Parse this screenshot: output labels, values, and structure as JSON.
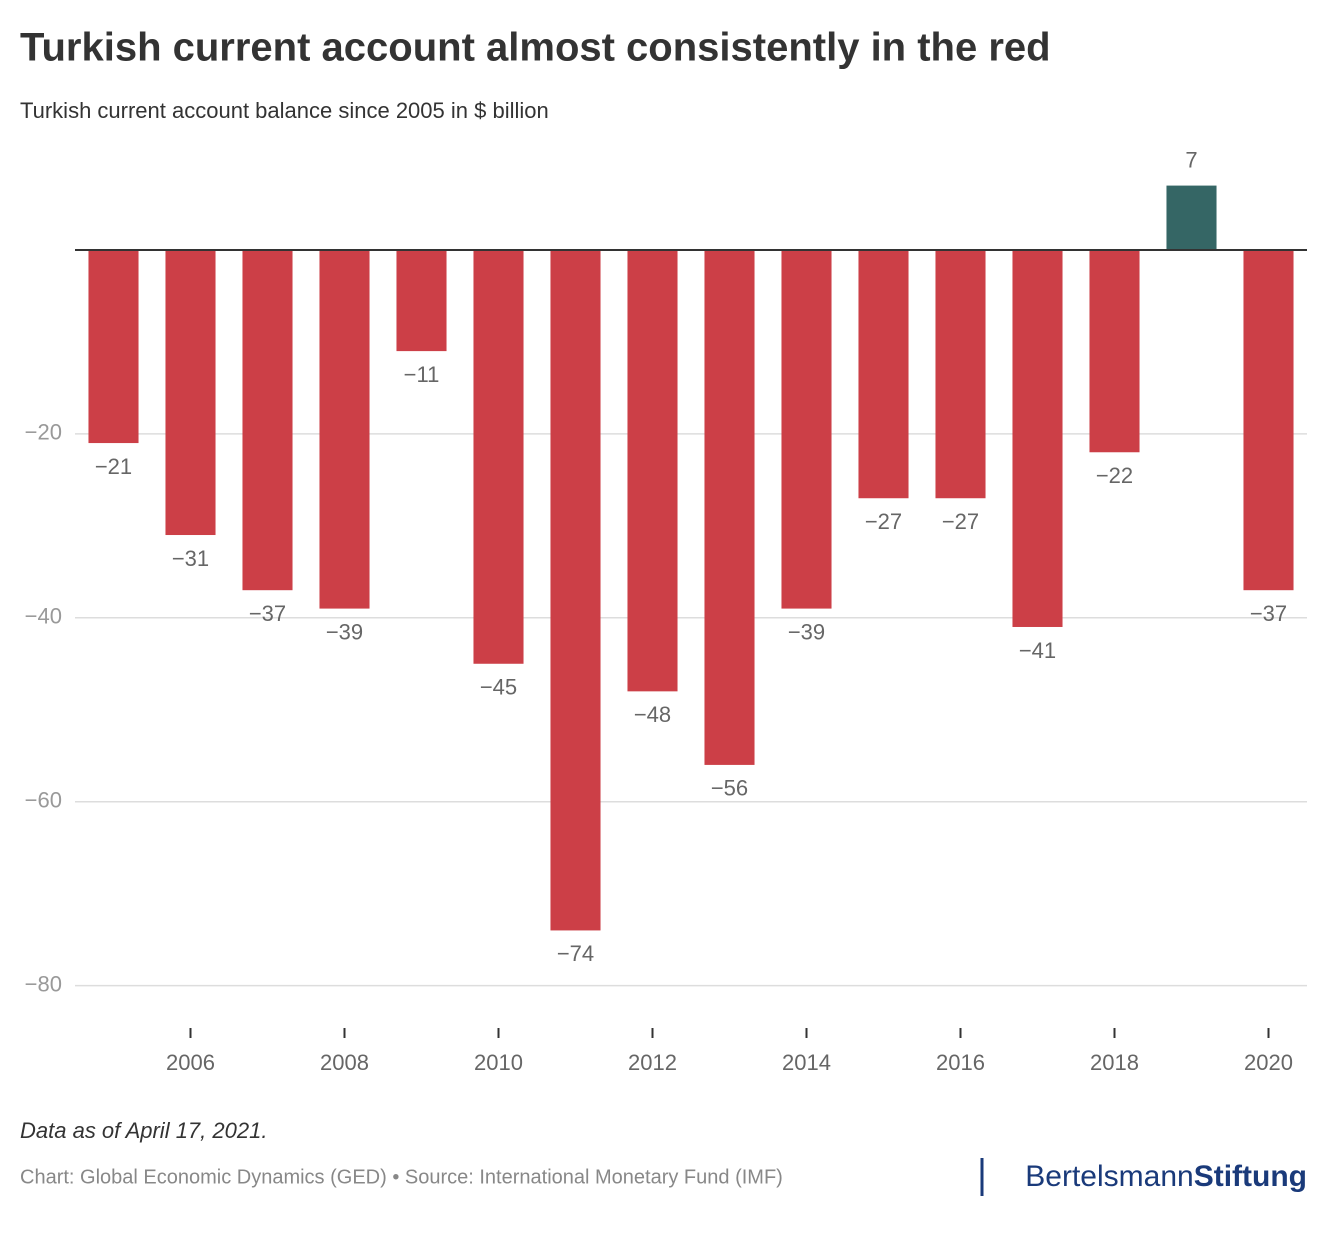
{
  "chart_data": {
    "type": "bar",
    "title": "Turkish current account almost consistently in the red",
    "subtitle": "Turkish current account balance since 2005 in $ billion",
    "x": [
      2005,
      2006,
      2007,
      2008,
      2009,
      2010,
      2011,
      2012,
      2013,
      2014,
      2015,
      2016,
      2017,
      2018,
      2019,
      2020
    ],
    "values": [
      -21,
      -31,
      -37,
      -39,
      -11,
      -45,
      -74,
      -48,
      -56,
      -39,
      -27,
      -27,
      -41,
      -22,
      7,
      -37
    ],
    "value_labels": [
      "−21",
      "−31",
      "−37",
      "−39",
      "−11",
      "−45",
      "−74",
      "−48",
      "−56",
      "−39",
      "−27",
      "−27",
      "−41",
      "−22",
      "7",
      "−37"
    ],
    "colors": [
      "#cc3f47",
      "#cc3f47",
      "#cc3f47",
      "#cc3f47",
      "#cc3f47",
      "#cc3f47",
      "#cc3f47",
      "#cc3f47",
      "#cc3f47",
      "#cc3f47",
      "#cc3f47",
      "#cc3f47",
      "#cc3f47",
      "#cc3f47",
      "#356665",
      "#cc3f47"
    ],
    "xlim": [
      2004.5,
      2020.5
    ],
    "xticks": [
      2006,
      2008,
      2010,
      2012,
      2014,
      2016,
      2018,
      2020
    ],
    "ylim": [
      -82,
      10
    ],
    "yticks": [
      {
        "value": -20,
        "label": "−20"
      },
      {
        "value": -40,
        "label": "−40"
      },
      {
        "value": -60,
        "label": "−60"
      },
      {
        "value": -80,
        "label": "−80"
      }
    ],
    "grid": true,
    "note": "Data as of April 17, 2021.",
    "source": "Chart: Global Economic Dynamics (GED) • Source: International Monetary Fund (IMF)",
    "logo": {
      "first": "Bertelsmann",
      "second": "Stiftung"
    }
  }
}
